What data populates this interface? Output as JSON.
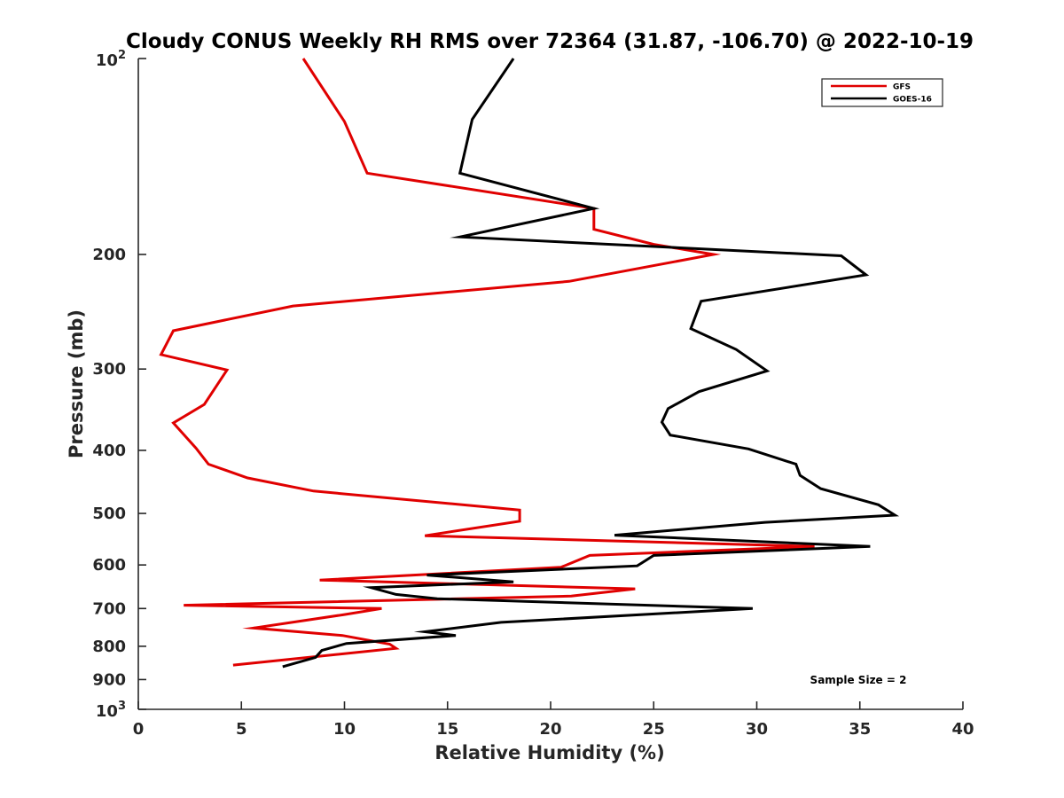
{
  "chart_data": {
    "type": "line",
    "title": "Cloudy CONUS Weekly RH RMS over 72364 (31.87, -106.70) @ 2022-10-19",
    "xlabel": "Relative Humidity (%)",
    "ylabel": "Pressure (mb)",
    "xlim": [
      0,
      40
    ],
    "ylim": [
      100,
      1000
    ],
    "yscale": "log",
    "y_reversed": true,
    "grid": false,
    "legend_position": "top-right",
    "xticks": [
      0,
      5,
      10,
      15,
      20,
      25,
      30,
      35,
      40
    ],
    "xtick_labels": [
      "0",
      "5",
      "10",
      "15",
      "20",
      "25",
      "30",
      "35",
      "40"
    ],
    "yticks": [
      200,
      300,
      400,
      500,
      600,
      700,
      800,
      900
    ],
    "ytick_labels": [
      "200",
      "300",
      "400",
      "500",
      "600",
      "700",
      "800",
      "900"
    ],
    "ytick_top": {
      "base": "10",
      "exp": "2"
    },
    "ytick_bottom": {
      "base": "10",
      "exp": "3"
    },
    "annotation": "Sample Size = 2",
    "series": [
      {
        "name": "GFS",
        "color": "#e00000",
        "x": [
          8.0,
          10.0,
          11.1,
          22.1,
          22.1,
          25.0,
          27.9,
          20.9,
          7.5,
          1.7,
          1.1,
          4.3,
          3.2,
          1.7,
          2.8,
          3.4,
          5.3,
          8.5,
          18.5,
          18.5,
          13.9,
          32.8,
          21.9,
          20.5,
          8.8,
          24.1,
          21.0,
          2.2,
          11.8,
          10.0,
          5.6,
          9.9,
          12.2,
          12.5,
          4.6
        ],
        "y": [
          100,
          125,
          150,
          170,
          183,
          193,
          200,
          220,
          240,
          262,
          285,
          301,
          340,
          363,
          397,
          420,
          441,
          462,
          494,
          514,
          541,
          562,
          580,
          605,
          633,
          653,
          670,
          692,
          700,
          715,
          750,
          770,
          794,
          806,
          855
        ]
      },
      {
        "name": "GOES-16",
        "color": "#000000",
        "x": [
          18.2,
          16.2,
          15.6,
          22.1,
          15.6,
          34.1,
          35.3,
          27.3,
          26.8,
          29.0,
          30.5,
          27.2,
          25.7,
          25.4,
          25.8,
          29.6,
          31.9,
          32.1,
          33.1,
          35.9,
          36.7,
          30.4,
          23.1,
          35.5,
          25.0,
          24.2,
          14.0,
          18.2,
          11.3,
          12.5,
          14.5,
          29.8,
          17.6,
          13.9,
          15.4,
          10.1,
          8.9,
          8.6,
          7.0
        ],
        "y": [
          100,
          124,
          150,
          170,
          188,
          201,
          215,
          236,
          260,
          280,
          302,
          325,
          345,
          362,
          379,
          398,
          420,
          437,
          458,
          485,
          503,
          516,
          540,
          562,
          580,
          602,
          622,
          637,
          650,
          666,
          676,
          700,
          735,
          760,
          770,
          792,
          812,
          832,
          860
        ]
      }
    ]
  }
}
